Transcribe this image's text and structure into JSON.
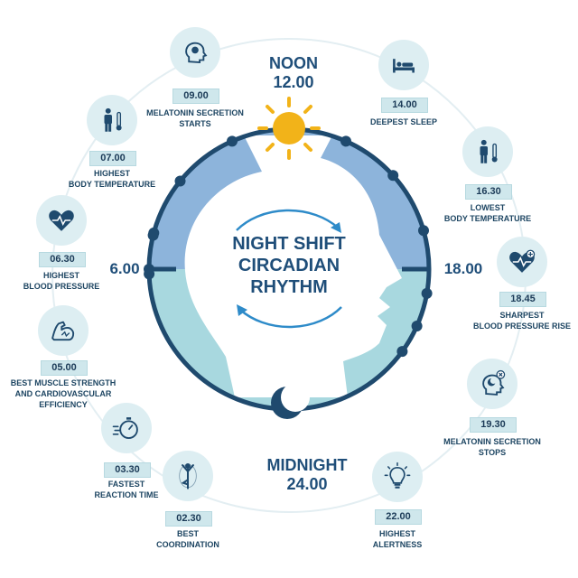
{
  "colors": {
    "navy": "#1f4a6e",
    "day_blue": "#8db4db",
    "night_teal": "#a8d8df",
    "sun": "#f2b319",
    "icon_bg": "#ddeef2",
    "label_bg": "#cfe7ec",
    "text": "#1d4562"
  },
  "center_title": [
    "NIGHT SHIFT",
    "CIRCADIAN",
    "RHYTHM"
  ],
  "noon_label": "NOON\n12.00",
  "midnight_label": "MIDNIGHT\n24.00",
  "left_time": "6.00",
  "right_time": "18.00",
  "stations": [
    {
      "time": "09.00",
      "desc": "MELATONIN SECRETION\nSTARTS",
      "icon": "head-icon"
    },
    {
      "time": "14.00",
      "desc": "DEEPEST SLEEP",
      "icon": "bed-icon"
    },
    {
      "time": "16.30",
      "desc": "LOWEST\nBODY TEMPERATURE",
      "icon": "person-thermometer-icon"
    },
    {
      "time": "18.45",
      "desc": "SHARPEST\nBLOOD PRESSURE RISE",
      "icon": "heart-plus-icon"
    },
    {
      "time": "19.30",
      "desc": "MELATONIN SECRETION\nSTOPS",
      "icon": "head-moon-x-icon"
    },
    {
      "time": "22.00",
      "desc": "HIGHEST\nALERTNESS",
      "icon": "lightbulb-icon"
    },
    {
      "time": "02.30",
      "desc": "BEST\nCOORDINATION",
      "icon": "yoga-icon"
    },
    {
      "time": "03.30",
      "desc": "FASTEST\nREACTION TIME",
      "icon": "stopwatch-icon"
    },
    {
      "time": "05.00",
      "desc": "BEST MUSCLE STRENGTH\nAND CARDIOVASCULAR\nEFFICIENCY",
      "icon": "arm-muscle-icon"
    },
    {
      "time": "06.30",
      "desc": "HIGHEST\nBLOOD PRESSURE",
      "icon": "heart-pulse-icon"
    },
    {
      "time": "07.00",
      "desc": "HIGHEST\nBODY TEMPERATURE",
      "icon": "person-thermometer-icon"
    }
  ]
}
